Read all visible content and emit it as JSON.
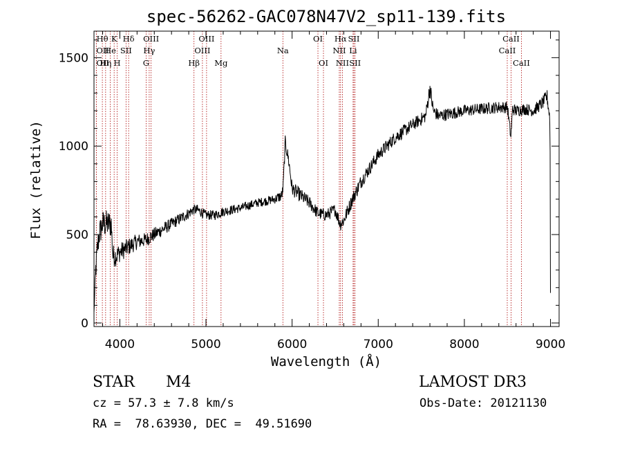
{
  "chart_data": {
    "type": "line",
    "title": "spec-56262-GAC078N47V2_sp11-139.fits",
    "xlabel": "Wavelength (Å)",
    "ylabel": "Flux (relative)",
    "xlim": [
      3700,
      9100
    ],
    "ylim": [
      -20,
      1650
    ],
    "xticks": [
      4000,
      5000,
      6000,
      7000,
      8000,
      9000
    ],
    "xtick_labels": [
      "4000",
      "5000",
      "6000",
      "7000",
      "8000",
      "9000"
    ],
    "yticks": [
      0,
      500,
      1000,
      1500
    ],
    "ytick_labels": [
      "0",
      "500",
      "1000",
      "1500"
    ],
    "line_color": "#000000",
    "marker_color": "#aa0000",
    "spectrum_anchors": {
      "wavelength": [
        3700,
        3720,
        3740,
        3760,
        3800,
        3850,
        3880,
        3900,
        3920,
        3960,
        4000,
        4100,
        4200,
        4300,
        4400,
        4600,
        4800,
        4850,
        4900,
        5000,
        5100,
        5200,
        5400,
        5600,
        5800,
        5880,
        5895,
        5920,
        5960,
        6000,
        6100,
        6200,
        6300,
        6400,
        6500,
        6560,
        6600,
        6700,
        6800,
        7000,
        7200,
        7400,
        7550,
        7600,
        7640,
        7700,
        7800,
        8000,
        8200,
        8400,
        8500,
        8540,
        8560,
        8600,
        8700,
        8800,
        8900,
        8960,
        8995,
        9000
      ],
      "flux": [
        60,
        300,
        420,
        500,
        560,
        560,
        560,
        560,
        380,
        380,
        400,
        430,
        460,
        470,
        500,
        560,
        620,
        640,
        640,
        610,
        610,
        630,
        650,
        680,
        700,
        720,
        760,
        1020,
        920,
        760,
        720,
        680,
        620,
        610,
        640,
        560,
        580,
        700,
        800,
        950,
        1050,
        1120,
        1170,
        1330,
        1200,
        1170,
        1180,
        1200,
        1210,
        1220,
        1220,
        1050,
        1210,
        1200,
        1210,
        1200,
        1240,
        1280,
        1150,
        170
      ],
      "noise": [
        0,
        80,
        80,
        80,
        80,
        80,
        80,
        80,
        65,
        60,
        55,
        50,
        45,
        40,
        40,
        35,
        32,
        30,
        30,
        28,
        28,
        28,
        26,
        26,
        26,
        35,
        35,
        40,
        40,
        40,
        40,
        38,
        36,
        36,
        36,
        40,
        40,
        40,
        40,
        38,
        38,
        36,
        36,
        50,
        40,
        36,
        36,
        34,
        34,
        34,
        34,
        34,
        34,
        34,
        34,
        34,
        36,
        40,
        40,
        0
      ]
    },
    "lines": [
      {
        "label": "Hθ",
        "wavelength": 3797,
        "row": 0,
        "anchor": "middle"
      },
      {
        "label": "OII",
        "wavelength": 3727,
        "row": 1,
        "anchor": "start"
      },
      {
        "label": "OII",
        "wavelength": 3727,
        "row": 2,
        "anchor": "start"
      },
      {
        "label": "Hη",
        "wavelength": 3835,
        "row": 2,
        "anchor": "middle"
      },
      {
        "label": "He",
        "wavelength": 3889,
        "row": 1,
        "anchor": "middle"
      },
      {
        "label": "K",
        "wavelength": 3934,
        "row": 0,
        "anchor": "middle"
      },
      {
        "label": "H",
        "wavelength": 3969,
        "row": 2,
        "anchor": "middle"
      },
      {
        "label": "Hδ",
        "wavelength": 4102,
        "row": 0,
        "anchor": "middle"
      },
      {
        "label": "SII",
        "wavelength": 4072,
        "row": 1,
        "anchor": "middle"
      },
      {
        "label": "OIII",
        "wavelength": 4363,
        "row": 0,
        "anchor": "middle"
      },
      {
        "label": "Hγ",
        "wavelength": 4341,
        "row": 1,
        "anchor": "middle"
      },
      {
        "label": "G",
        "wavelength": 4305,
        "row": 2,
        "anchor": "middle"
      },
      {
        "label": "Hβ",
        "wavelength": 4861,
        "row": 2,
        "anchor": "middle"
      },
      {
        "label": "OIII",
        "wavelength": 5007,
        "row": 0,
        "anchor": "middle"
      },
      {
        "label": "OIII",
        "wavelength": 4959,
        "row": 1,
        "anchor": "middle"
      },
      {
        "label": "Mg",
        "wavelength": 5175,
        "row": 2,
        "anchor": "middle"
      },
      {
        "label": "Na",
        "wavelength": 5893,
        "row": 1,
        "anchor": "middle"
      },
      {
        "label": "OI",
        "wavelength": 6300,
        "row": 0,
        "anchor": "middle"
      },
      {
        "label": "OI",
        "wavelength": 6364,
        "row": 2,
        "anchor": "middle"
      },
      {
        "label": "Hα",
        "wavelength": 6563,
        "row": 0,
        "anchor": "middle"
      },
      {
        "label": "NII",
        "wavelength": 6548,
        "row": 1,
        "anchor": "middle"
      },
      {
        "label": "NII",
        "wavelength": 6584,
        "row": 2,
        "anchor": "middle"
      },
      {
        "label": "SII",
        "wavelength": 6717,
        "row": 0,
        "anchor": "middle"
      },
      {
        "label": "Li",
        "wavelength": 6708,
        "row": 1,
        "anchor": "middle"
      },
      {
        "label": "SII",
        "wavelength": 6731,
        "row": 2,
        "anchor": "middle"
      },
      {
        "label": "CaII",
        "wavelength": 8542,
        "row": 0,
        "anchor": "middle"
      },
      {
        "label": "CaII",
        "wavelength": 8498,
        "row": 1,
        "anchor": "middle"
      },
      {
        "label": "CaII",
        "wavelength": 8662,
        "row": 2,
        "anchor": "middle"
      }
    ]
  },
  "info": {
    "object_type": "STAR",
    "subclass": "M4",
    "survey": "LAMOST DR3",
    "redshift": "cz = 57.3 ± 7.8 km/s",
    "obs_date": "Obs-Date: 20121130",
    "coords": "RA =  78.63930, DEC =  49.51690"
  }
}
